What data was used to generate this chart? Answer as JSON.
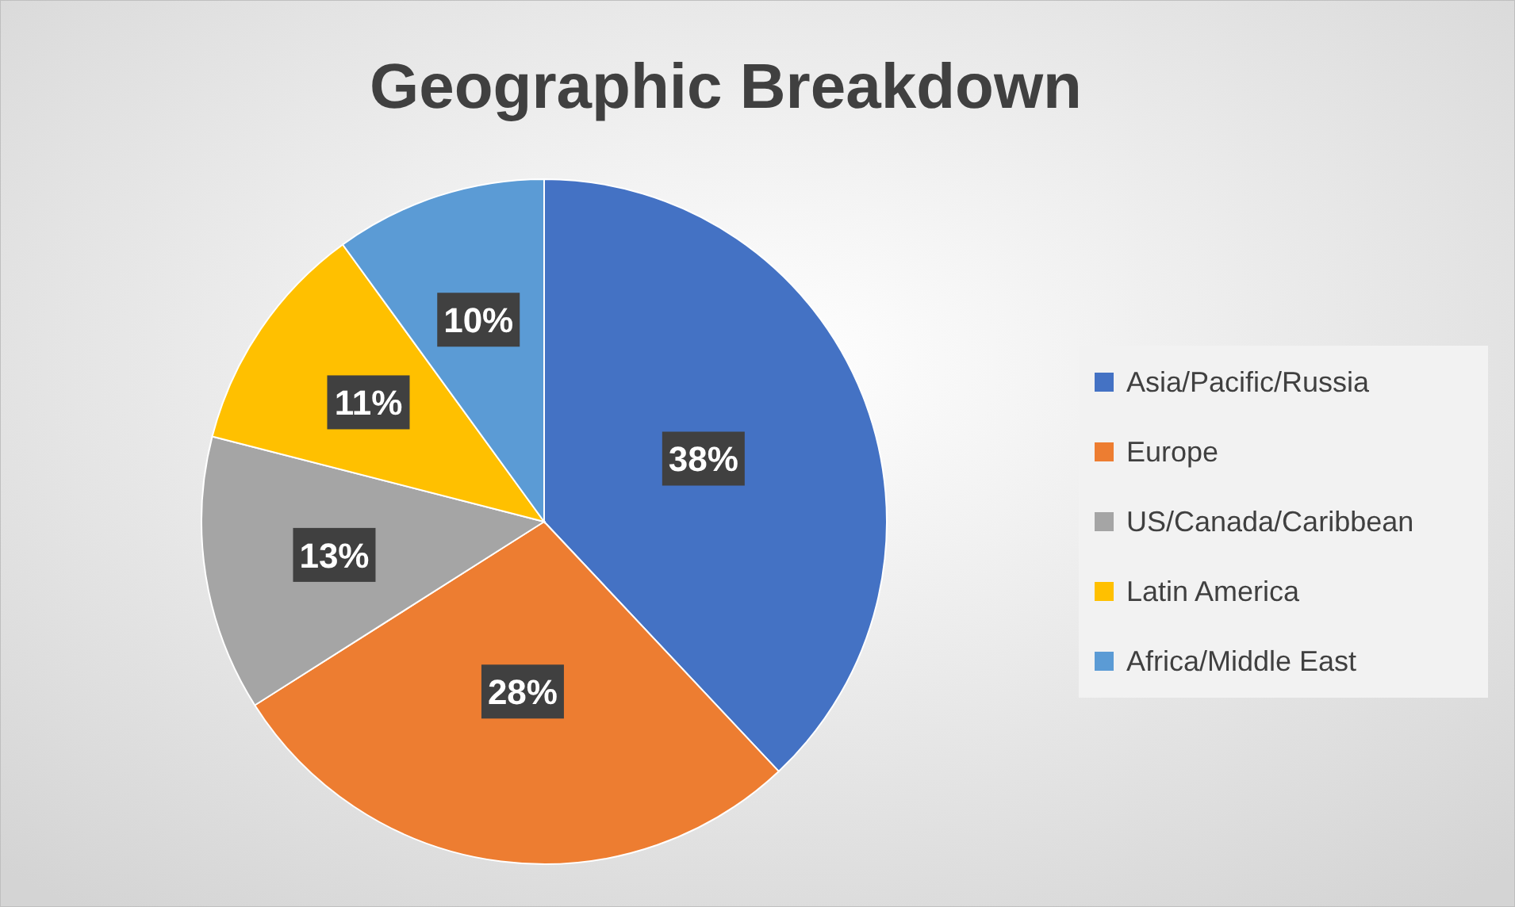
{
  "chart_data": {
    "type": "pie",
    "title": "Geographic Breakdown",
    "categories": [
      "Asia/Pacific/Russia",
      "Europe",
      "US/Canada/Caribbean",
      "Latin America",
      "Africa/Middle East"
    ],
    "values": [
      38,
      28,
      13,
      11,
      10
    ],
    "colors": [
      "#4472c4",
      "#ed7d31",
      "#a5a5a5",
      "#ffc000",
      "#5b9bd5"
    ],
    "value_labels": [
      "38%",
      "28%",
      "13%",
      "11%",
      "10%"
    ],
    "legend": "right"
  }
}
